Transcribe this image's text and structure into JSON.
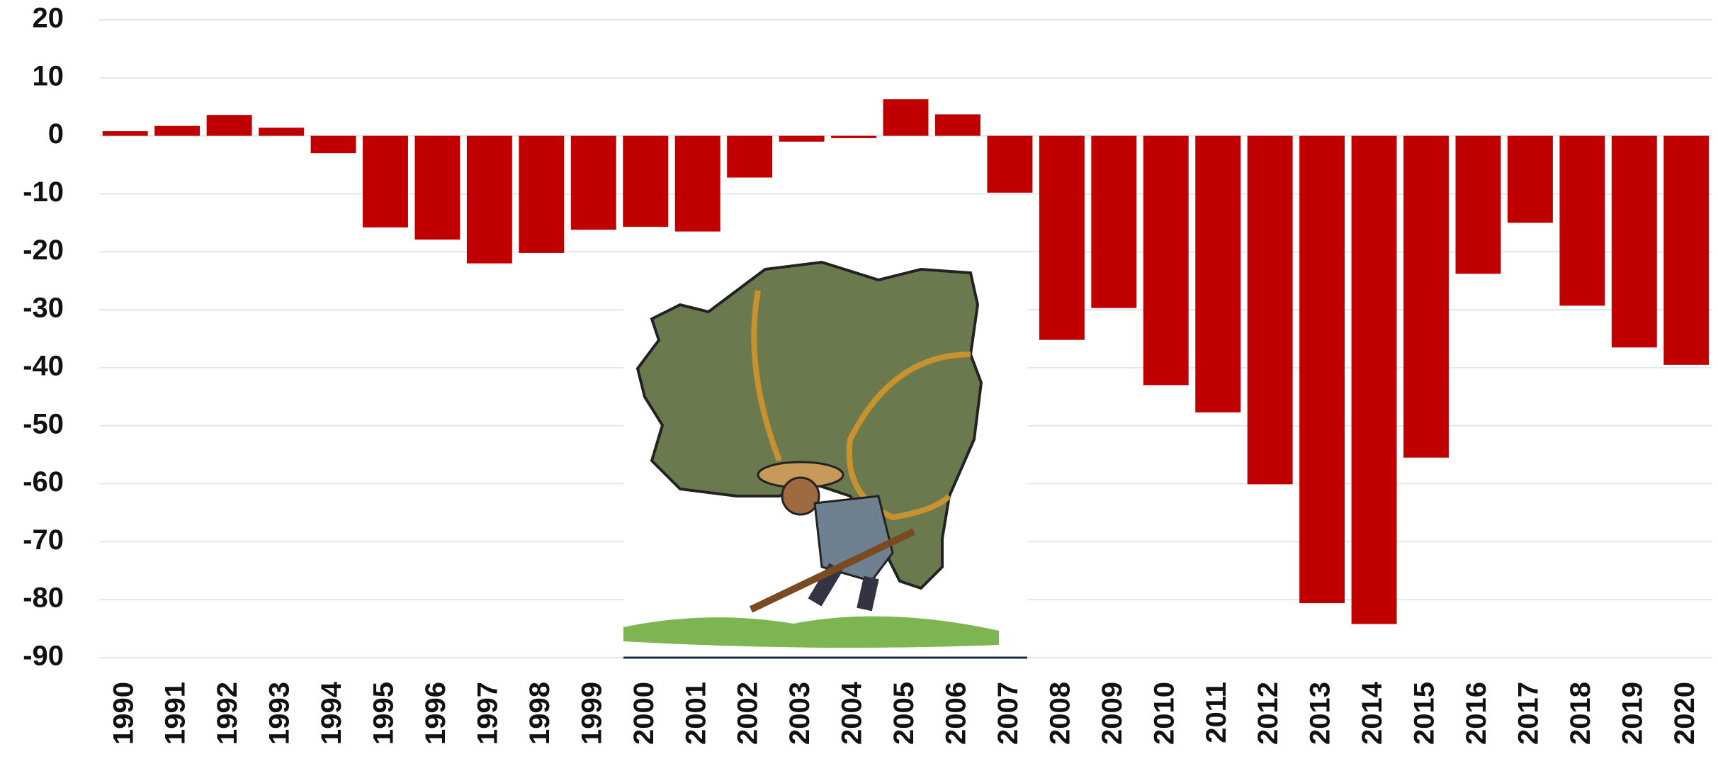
{
  "chart_data": {
    "type": "bar",
    "categories": [
      "1990",
      "1991",
      "1992",
      "1993",
      "1994",
      "1995",
      "1996",
      "1997",
      "1998",
      "1999",
      "2000",
      "2001",
      "2002",
      "2003",
      "2004",
      "2005",
      "2006",
      "2007",
      "2008",
      "2009",
      "2010",
      "2011",
      "2012",
      "2013",
      "2014",
      "2015",
      "2016",
      "2017",
      "2018",
      "2019",
      "2020"
    ],
    "values": [
      0.8,
      1.7,
      3.6,
      1.4,
      -3,
      -15.8,
      -17.9,
      -22,
      -20.2,
      -16.2,
      -15.7,
      -16.5,
      -7.2,
      -1,
      -0.4,
      6.3,
      3.7,
      -9.8,
      -35.2,
      -29.7,
      -43,
      -47.7,
      -60.1,
      -80.6,
      -84.2,
      -55.5,
      -23.8,
      -15,
      -29.3,
      -36.5,
      -39.5
    ],
    "color": "#c00000",
    "ylim": [
      -90,
      20
    ],
    "yticks": [
      -90,
      -80,
      -70,
      -60,
      -50,
      -40,
      -30,
      -20,
      -10,
      0,
      10,
      20
    ],
    "grid": true
  }
}
